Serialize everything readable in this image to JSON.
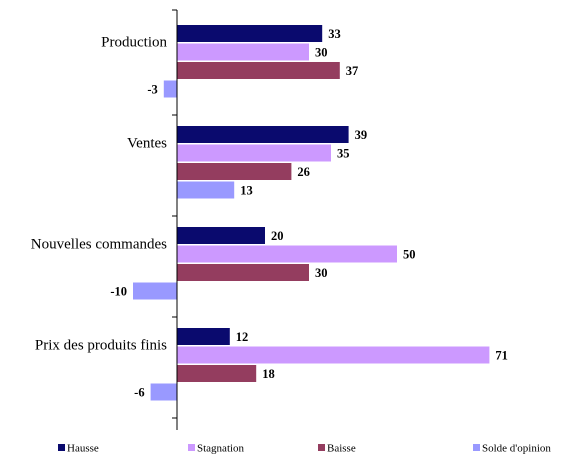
{
  "chart_data": {
    "type": "bar",
    "orientation": "horizontal",
    "categories": [
      "Production",
      "Ventes",
      "Nouvelles commandes",
      "Prix des produits finis"
    ],
    "series": [
      {
        "name": "Hausse",
        "color": "#0a0a6e",
        "values": [
          33,
          39,
          20,
          12
        ]
      },
      {
        "name": "Stagnation",
        "color": "#cc99ff",
        "values": [
          30,
          35,
          50,
          71
        ]
      },
      {
        "name": "Baisse",
        "color": "#943d5f",
        "values": [
          37,
          26,
          30,
          18
        ]
      },
      {
        "name": "Solde d'opinion",
        "color": "#9999ff",
        "values": [
          -3,
          13,
          -10,
          -6
        ]
      }
    ],
    "legend_position": "bottom",
    "grid": false
  }
}
